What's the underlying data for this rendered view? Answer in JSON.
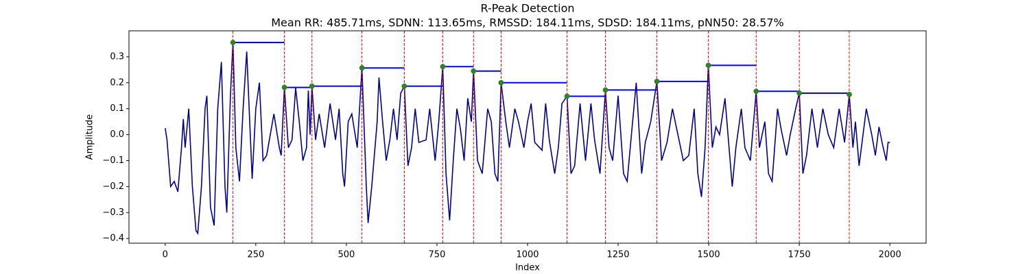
{
  "chart_data": {
    "type": "line",
    "title": "R-Peak Detection",
    "subtitle": "Mean RR: 485.71ms, SDNN: 113.65ms, RMSSD: 184.11ms, SDSD: 184.11ms, pNN50: 28.57%",
    "x_label": "Index",
    "y_label": "Amplitude",
    "xlim": [
      -100,
      2100
    ],
    "ylim": [
      -0.418,
      0.4
    ],
    "xticks": [
      0,
      250,
      500,
      750,
      1000,
      1250,
      1500,
      1750,
      2000
    ],
    "yticks": [
      {
        "value": -0.4,
        "label": "−0.4"
      },
      {
        "value": -0.3,
        "label": "−0.3"
      },
      {
        "value": -0.2,
        "label": "−0.2"
      },
      {
        "value": -0.1,
        "label": "−0.1"
      },
      {
        "value": 0,
        "label": "0.0"
      },
      0.1,
      0.2,
      0.3
    ],
    "series": [
      {
        "color": "#00008b",
        "x": [
          0,
          5,
          15,
          25,
          35,
          45,
          50,
          55,
          65,
          75,
          85,
          90,
          100,
          110,
          115,
          125,
          135,
          145,
          155,
          165,
          170,
          180,
          187,
          195,
          205,
          215,
          225,
          240,
          250,
          260,
          270,
          280,
          300,
          315,
          320,
          329,
          340,
          350,
          360,
          370,
          380,
          390,
          395,
          400,
          405,
          415,
          425,
          440,
          455,
          470,
          480,
          490,
          495,
          505,
          515,
          530,
          543,
          555,
          560,
          570,
          585,
          590,
          600,
          610,
          620,
          630,
          640,
          650,
          660,
          670,
          680,
          690,
          700,
          720,
          730,
          745,
          755,
          766,
          775,
          785,
          795,
          805,
          815,
          825,
          835,
          845,
          851,
          862,
          875,
          890,
          900,
          910,
          918,
          927,
          940,
          950,
          965,
          975,
          990,
          1000,
          1010,
          1020,
          1040,
          1050,
          1060,
          1075,
          1085,
          1095,
          1109,
          1120,
          1130,
          1145,
          1160,
          1175,
          1185,
          1200,
          1215,
          1225,
          1235,
          1250,
          1265,
          1275,
          1290,
          1300,
          1315,
          1325,
          1340,
          1357,
          1370,
          1385,
          1400,
          1415,
          1430,
          1445,
          1460,
          1470,
          1480,
          1490,
          1499,
          1510,
          1520,
          1530,
          1545,
          1555,
          1565,
          1575,
          1590,
          1600,
          1615,
          1631,
          1640,
          1655,
          1665,
          1675,
          1690,
          1700,
          1715,
          1725,
          1740,
          1750,
          1760,
          1770,
          1785,
          1800,
          1815,
          1830,
          1845,
          1860,
          1875,
          1888,
          1898,
          1905,
          1915,
          1935,
          1950,
          1960,
          1970,
          1980,
          1990,
          1995,
          2000
        ],
        "values": [
          0.025,
          -0.02,
          -0.2,
          -0.18,
          -0.22,
          -0.05,
          0.06,
          -0.05,
          0.1,
          -0.2,
          -0.37,
          -0.38,
          -0.2,
          0.1,
          0.15,
          -0.28,
          -0.35,
          0.1,
          0.28,
          -0.2,
          -0.3,
          0.15,
          0.355,
          -0.05,
          -0.18,
          0.1,
          0.32,
          -0.17,
          0.1,
          0.2,
          -0.1,
          -0.08,
          0.08,
          -0.05,
          -0.08,
          0.182,
          -0.05,
          -0.02,
          0.18,
          0.05,
          -0.1,
          -0.05,
          0.17,
          0.0,
          0.187,
          -0.02,
          0.08,
          -0.05,
          0.12,
          -0.02,
          0.1,
          -0.15,
          -0.2,
          0.05,
          0.08,
          -0.05,
          0.257,
          -0.2,
          -0.34,
          -0.2,
          0.05,
          0.22,
          0.05,
          -0.1,
          -0.02,
          0.1,
          -0.02,
          0.16,
          0.187,
          -0.12,
          -0.05,
          0.1,
          -0.03,
          -0.02,
          0.1,
          -0.1,
          0.05,
          0.262,
          -0.15,
          -0.33,
          -0.1,
          0.1,
          0.02,
          -0.1,
          0.14,
          0.05,
          0.245,
          -0.1,
          -0.15,
          0.1,
          0.05,
          -0.15,
          -0.18,
          0.2,
          0.05,
          -0.05,
          0.1,
          0.05,
          -0.05,
          0.05,
          0.12,
          -0.03,
          -0.06,
          0.12,
          -0.02,
          -0.15,
          -0.05,
          0.12,
          0.148,
          -0.15,
          -0.12,
          0.12,
          -0.1,
          0.12,
          -0.02,
          -0.15,
          0.172,
          -0.05,
          -0.1,
          0.15,
          -0.15,
          -0.18,
          0.05,
          0.2,
          -0.15,
          -0.03,
          0.05,
          0.205,
          -0.1,
          -0.03,
          0.1,
          0.0,
          -0.1,
          -0.08,
          0.1,
          -0.15,
          -0.24,
          -0.05,
          0.267,
          -0.05,
          0.03,
          0.0,
          0.14,
          -0.03,
          -0.2,
          -0.05,
          0.1,
          -0.05,
          -0.1,
          0.167,
          -0.05,
          0.05,
          -0.15,
          -0.18,
          0.1,
          0.02,
          -0.08,
          0.0,
          0.1,
          0.16,
          -0.15,
          -0.08,
          0.1,
          -0.05,
          0.1,
          0.0,
          -0.05,
          0.1,
          -0.03,
          0.155,
          -0.05,
          0.05,
          -0.12,
          0.1,
          0.0,
          -0.08,
          0.03,
          -0.04,
          -0.1,
          -0.03,
          -0.03
        ]
      }
    ],
    "peaks": {
      "color": "#228b22",
      "line_color": "#0000ff",
      "marker_color": "#ff0000",
      "x": [
        187,
        329,
        405,
        543,
        660,
        766,
        851,
        927,
        1109,
        1215,
        1357,
        1499,
        1631,
        1750,
        1888
      ],
      "values": [
        0.355,
        0.182,
        0.187,
        0.257,
        0.187,
        0.262,
        0.245,
        0.2,
        0.148,
        0.172,
        0.205,
        0.267,
        0.167,
        0.16,
        0.155
      ]
    }
  }
}
